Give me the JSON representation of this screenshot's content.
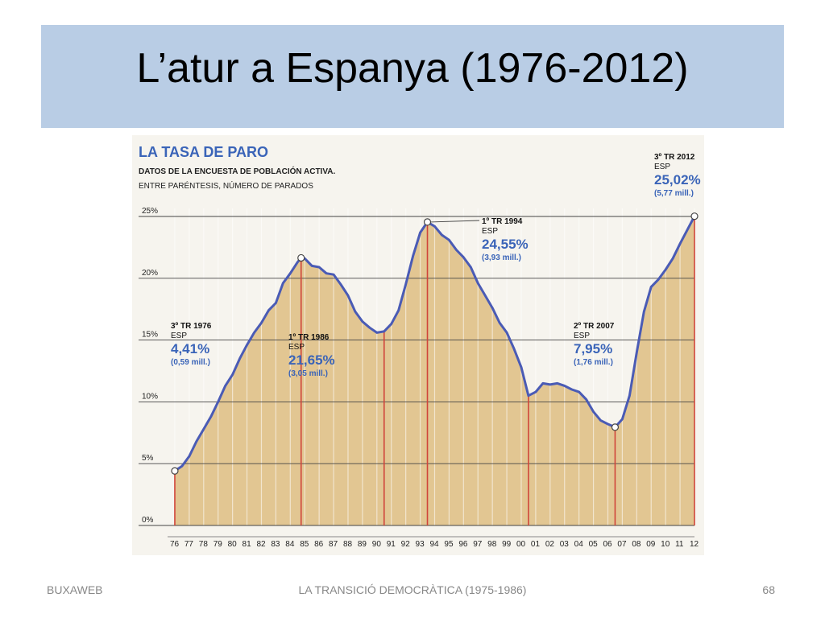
{
  "slide": {
    "title": "L’atur a Espanya (1976-2012)",
    "footer_left": "BUXAWEB",
    "footer_center": "LA TRANSICIÓ DEMOCRÀTICA (1975-1986)",
    "page_number": "68"
  },
  "colors": {
    "title_bar": "#b9cde5",
    "line": "#4a5bb5",
    "fill": "#e2c692",
    "marker_line": "#d0453a",
    "annotation_blue": "#3a64b8"
  },
  "chart_data": {
    "type": "area",
    "title": "LA TASA DE PARO",
    "subtitle": "DATOS DE LA ENCUESTA DE POBLACIÓN ACTIVA.",
    "subtitle2": "ENTRE PARÉNTESIS, NÚMERO DE PARADOS",
    "y_ticks": [
      "0%",
      "5%",
      "10%",
      "15%",
      "20%",
      "25%"
    ],
    "y_tick_values": [
      0,
      5,
      10,
      15,
      20,
      25
    ],
    "x_ticks": [
      "76",
      "77",
      "78",
      "79",
      "80",
      "81",
      "82",
      "83",
      "84",
      "85",
      "86",
      "87",
      "88",
      "89",
      "90",
      "91",
      "92",
      "93",
      "94",
      "95",
      "96",
      "97",
      "98",
      "99",
      "00",
      "01",
      "02",
      "03",
      "04",
      "05",
      "06",
      "07",
      "08",
      "09",
      "10",
      "11",
      "12"
    ],
    "ylim": [
      0,
      25
    ],
    "xlim": [
      1976,
      2012
    ],
    "grid": true,
    "series": [
      {
        "x": [
          1976.5,
          1977,
          1977.5,
          1978,
          1978.5,
          1979,
          1979.5,
          1980,
          1980.5,
          1981,
          1981.5,
          1982,
          1982.5,
          1983,
          1983.5,
          1984,
          1984.5,
          1985,
          1985.25,
          1985.5,
          1986,
          1986.5,
          1987,
          1987.5,
          1988,
          1988.5,
          1989,
          1989.5,
          1990,
          1990.5,
          1991,
          1991.5,
          1992,
          1992.5,
          1993,
          1993.5,
          1994,
          1994.5,
          1995,
          1995.5,
          1996,
          1996.5,
          1997,
          1997.5,
          1998,
          1998.5,
          1999,
          1999.5,
          2000,
          2000.5,
          2001,
          2001.5,
          2002,
          2002.5,
          2003,
          2003.5,
          2004,
          2004.5,
          2005,
          2005.5,
          2006,
          2006.5,
          2007,
          2007.5,
          2008,
          2008.5,
          2009,
          2009.5,
          2010,
          2010.5,
          2011,
          2011.5,
          2012.5
        ],
        "y": [
          4.41,
          4.8,
          5.6,
          6.8,
          7.8,
          8.8,
          10.0,
          11.3,
          12.2,
          13.5,
          14.6,
          15.6,
          16.4,
          17.4,
          18.0,
          19.6,
          20.4,
          21.3,
          21.65,
          21.6,
          21.0,
          20.9,
          20.4,
          20.3,
          19.5,
          18.6,
          17.3,
          16.5,
          16.0,
          15.6,
          15.7,
          16.3,
          17.4,
          19.5,
          21.8,
          23.7,
          24.55,
          24.2,
          23.5,
          23.1,
          22.3,
          21.7,
          20.9,
          19.6,
          18.6,
          17.6,
          16.4,
          15.6,
          14.3,
          12.8,
          10.5,
          10.8,
          11.5,
          11.4,
          11.5,
          11.3,
          11.0,
          10.8,
          10.2,
          9.2,
          8.5,
          8.2,
          7.95,
          8.6,
          10.5,
          14.0,
          17.3,
          19.3,
          19.9,
          20.7,
          21.6,
          22.8,
          25.02
        ]
      }
    ],
    "annotations": [
      {
        "period": "3º TR 1976",
        "region": "ESP",
        "rate": "4,41%",
        "people": "(0,59 mill.)"
      },
      {
        "period": "1º TR 1986",
        "region": "ESP",
        "rate": "21,65%",
        "people": "(3,05 mill.)"
      },
      {
        "period": "1º TR 1994",
        "region": "ESP",
        "rate": "24,55%",
        "people": "(3,93 mill.)"
      },
      {
        "period": "2º TR 2007",
        "region": "ESP",
        "rate": "7,95%",
        "people": "(1,76 mill.)"
      },
      {
        "period": "3º TR 2012",
        "region": "ESP",
        "rate": "25,02%",
        "people": "(5,77 mill.)"
      }
    ],
    "marker_years": [
      1976.5,
      1985.25,
      1991,
      1994,
      2001,
      2007,
      2012.5
    ],
    "highlight_points": [
      {
        "x": 1976.5,
        "y": 4.41
      },
      {
        "x": 1985.25,
        "y": 21.65
      },
      {
        "x": 1994,
        "y": 24.55
      },
      {
        "x": 2007,
        "y": 7.95
      },
      {
        "x": 2012.5,
        "y": 25.02
      }
    ]
  }
}
